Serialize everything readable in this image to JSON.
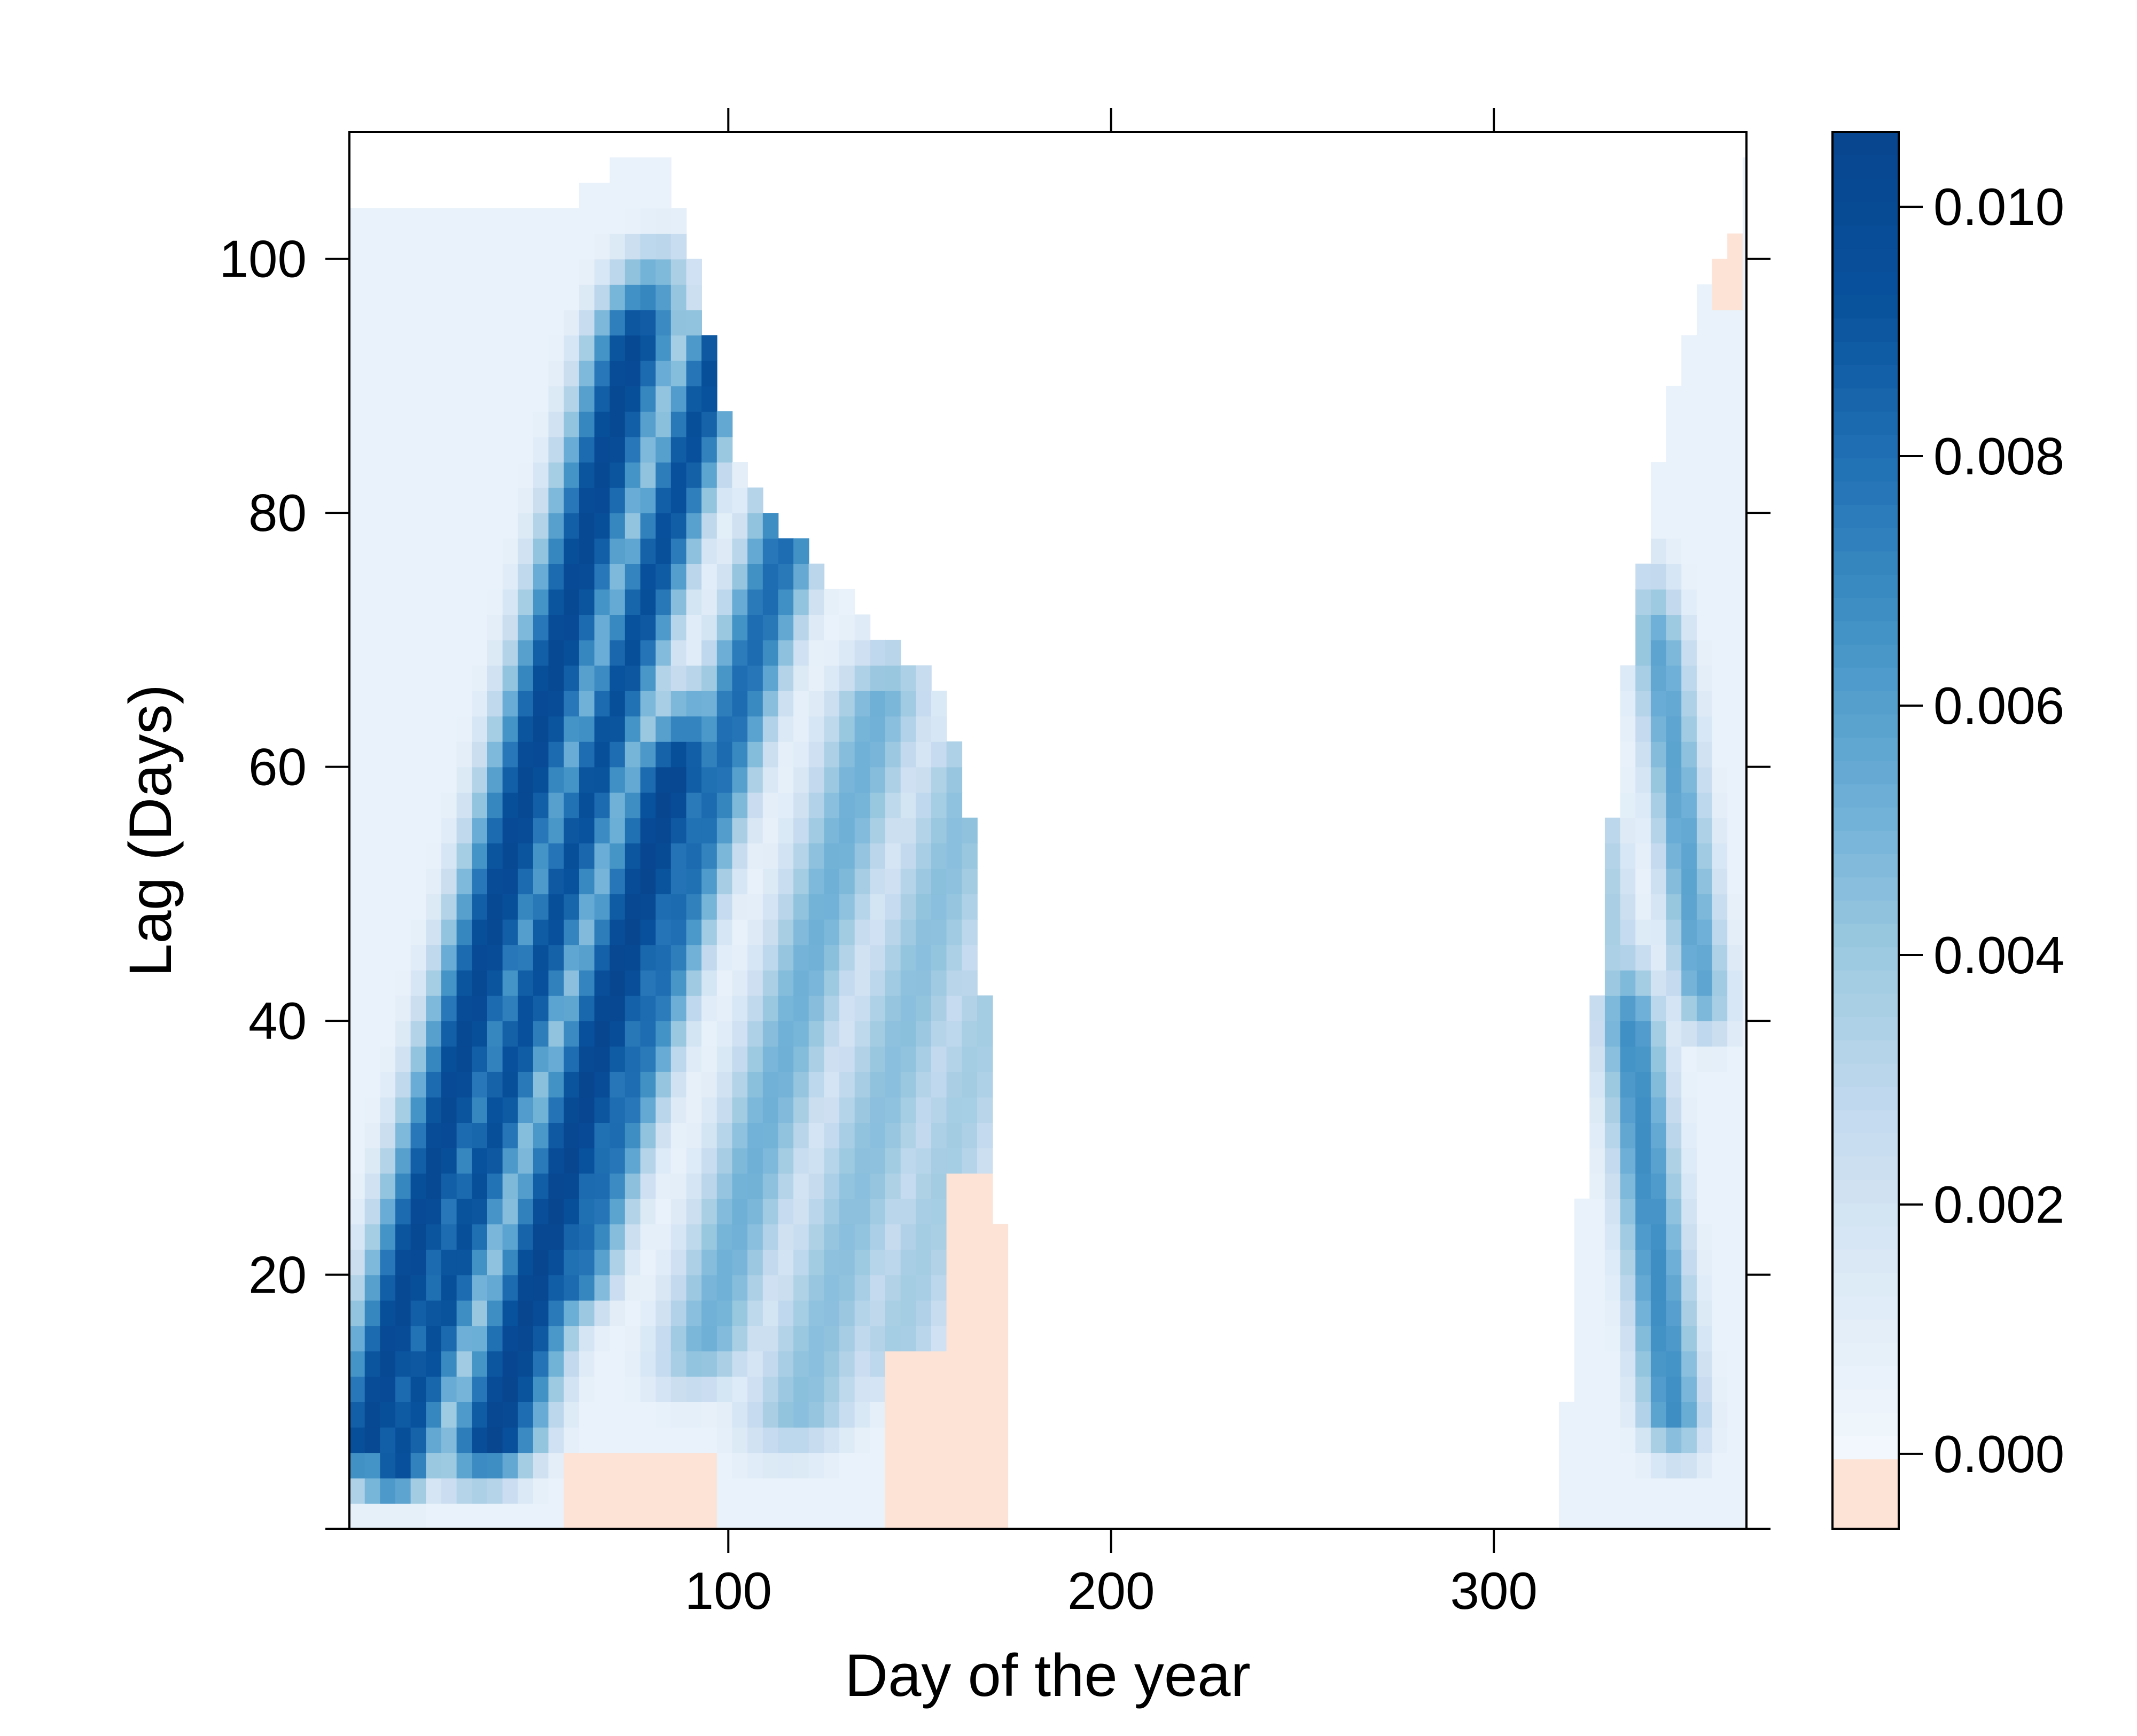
{
  "chart_data": {
    "type": "heatmap",
    "title": "",
    "xlabel": "Day of the year",
    "ylabel": "Lag (Days)",
    "x_ticks": [
      100,
      200,
      300
    ],
    "y_ticks": [
      20,
      40,
      60,
      80,
      100
    ],
    "colorbar_ticks": [
      "0.000",
      "0.002",
      "0.004",
      "0.006",
      "0.008",
      "0.010"
    ],
    "xlim": [
      1,
      366
    ],
    "ylim": [
      0,
      110
    ],
    "zlim": [
      -0.0006,
      0.0106
    ],
    "colors": {
      "negative": "#fde3d6",
      "zero": "#f2f7fc",
      "scale": [
        "#f2f7fc",
        "#deebf7",
        "#c6dbef",
        "#9ecae1",
        "#6baed6",
        "#4292c6",
        "#2171b5",
        "#08519c",
        "#08458f"
      ]
    },
    "upper_boundary": [
      [
        1,
        104
      ],
      [
        25,
        104
      ],
      [
        26,
        103
      ],
      [
        50,
        103
      ],
      [
        51,
        104
      ],
      [
        60,
        104
      ],
      [
        61,
        105
      ],
      [
        65,
        105
      ],
      [
        66,
        106
      ],
      [
        70,
        106
      ],
      [
        71,
        107
      ],
      [
        84,
        107
      ],
      [
        88,
        103
      ],
      [
        92,
        98
      ],
      [
        96,
        93
      ],
      [
        100,
        87
      ],
      [
        104,
        83
      ],
      [
        110,
        80
      ],
      [
        116,
        78
      ],
      [
        122,
        76
      ],
      [
        128,
        74
      ],
      [
        134,
        72
      ],
      [
        140,
        70
      ],
      [
        146,
        69
      ],
      [
        152,
        67
      ],
      [
        156,
        65
      ],
      [
        160,
        61
      ],
      [
        163,
        56
      ],
      [
        166,
        46
      ],
      [
        168,
        36
      ],
      [
        170,
        28
      ],
      [
        172,
        18
      ],
      [
        173,
        6
      ],
      [
        174,
        0
      ]
    ],
    "right_region_left_boundary": [
      [
        316,
        0
      ],
      [
        320,
        14
      ],
      [
        324,
        30
      ],
      [
        328,
        46
      ],
      [
        332,
        60
      ],
      [
        336,
        70
      ],
      [
        340,
        79
      ],
      [
        344,
        86
      ],
      [
        348,
        91
      ],
      [
        352,
        95
      ],
      [
        356,
        98
      ],
      [
        360,
        101
      ],
      [
        364,
        103
      ],
      [
        366,
        103
      ]
    ],
    "bands": [
      {
        "x0": 3,
        "y0": 3,
        "slope": 0.8,
        "peak": 0.0102,
        "width": 12,
        "ymax": 104
      },
      {
        "x0": 10,
        "y0": 1,
        "slope": 0.95,
        "peak": 0.0095,
        "width": 10,
        "ymax": 104
      },
      {
        "x0": 35,
        "y0": 3,
        "slope": 0.9,
        "peak": 0.0105,
        "width": 13,
        "ymax": 70
      },
      {
        "x0": 55,
        "y0": 15,
        "slope": 0.95,
        "peak": 0.0082,
        "width": 11,
        "ymax": 107
      },
      {
        "x0": 90,
        "y0": 10,
        "slope": 0.9,
        "peak": 0.0052,
        "width": 14,
        "ymax": 75
      },
      {
        "x0": 115,
        "y0": 5,
        "slope": 0.9,
        "peak": 0.0045,
        "width": 16,
        "ymax": 70
      },
      {
        "x0": 140,
        "y0": 10,
        "slope": 0.9,
        "peak": 0.0038,
        "width": 14,
        "ymax": 65
      },
      {
        "x0": 348,
        "y0": 5,
        "slope": -0.35,
        "peak": 0.0068,
        "width": 9,
        "ymax": 50
      },
      {
        "x0": 356,
        "y0": 38,
        "slope": -0.4,
        "peak": 0.0058,
        "width": 8,
        "ymax": 80
      },
      {
        "x0": 342,
        "y0": 20,
        "slope": -0.4,
        "peak": 0.0036,
        "width": 7,
        "ymax": 95
      }
    ],
    "negative_regions": [
      {
        "x_from": 57,
        "x_to": 95,
        "y_from": 0,
        "y_to": 6
      },
      {
        "x_from": 140,
        "x_to": 174,
        "y_from": 0,
        "y_to": 14
      },
      {
        "x_from": 158,
        "x_to": 174,
        "y_from": 14,
        "y_to": 27
      },
      {
        "x_from": 357,
        "x_to": 366,
        "y_from": 96,
        "y_to": 104
      }
    ],
    "grid": false,
    "legend": "colorbar-right"
  }
}
